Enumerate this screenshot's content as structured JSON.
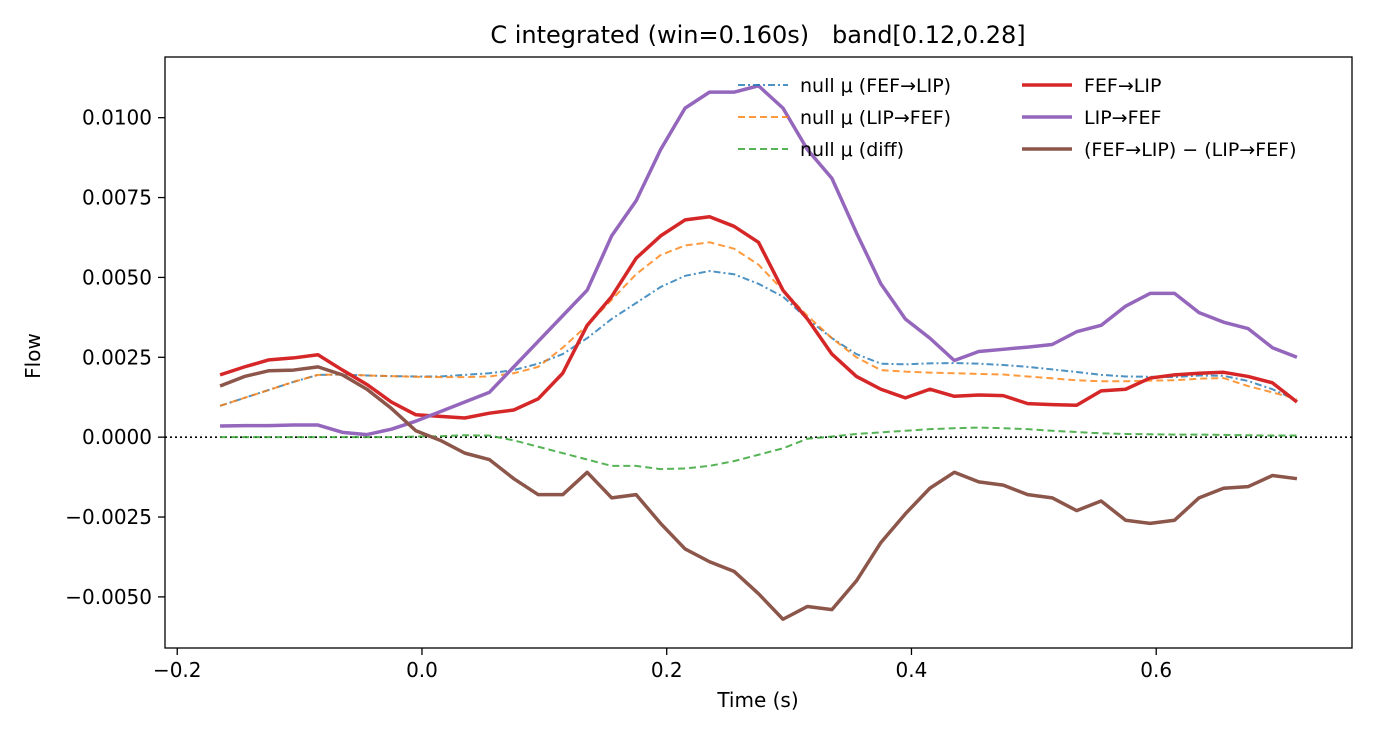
{
  "chart_data": {
    "type": "line",
    "title": "C integrated (win=0.160s)   band[0.12,0.28]",
    "xlabel": "Time (s)",
    "ylabel": "Flow",
    "xlim": [
      -0.21,
      0.76
    ],
    "ylim": [
      -0.0066,
      0.0119
    ],
    "xticks": [
      -0.2,
      0.0,
      0.2,
      0.4,
      0.6
    ],
    "xtick_labels": [
      "−0.2",
      "0.0",
      "0.2",
      "0.4",
      "0.6"
    ],
    "yticks": [
      -0.005,
      -0.0025,
      0.0,
      0.0025,
      0.005,
      0.0075,
      0.01
    ],
    "ytick_labels": [
      "−0.0050",
      "−0.0025",
      "0.0000",
      "0.0025",
      "0.0050",
      "0.0075",
      "0.0100"
    ],
    "grid": false,
    "legend_position": "top-right",
    "reference_line": {
      "y": 0.0,
      "style": "dotted",
      "color": "#000000"
    },
    "x": [
      -0.165,
      -0.145,
      -0.125,
      -0.105,
      -0.085,
      -0.065,
      -0.045,
      -0.025,
      -0.005,
      0.015,
      0.035,
      0.055,
      0.075,
      0.095,
      0.115,
      0.135,
      0.155,
      0.175,
      0.195,
      0.215,
      0.235,
      0.255,
      0.275,
      0.295,
      0.315,
      0.335,
      0.355,
      0.375,
      0.395,
      0.415,
      0.435,
      0.455,
      0.475,
      0.495,
      0.515,
      0.535,
      0.555,
      0.575,
      0.595,
      0.615,
      0.635,
      0.655,
      0.675,
      0.695,
      0.715
    ],
    "series": [
      {
        "name": "null μ (FEF→LIP)",
        "color": "#1f77b4",
        "style": "dashdot",
        "values": [
          0.00098,
          0.00123,
          0.00148,
          0.00173,
          0.00195,
          0.00196,
          0.00193,
          0.00191,
          0.0019,
          0.0019,
          0.00195,
          0.002,
          0.0021,
          0.0023,
          0.0026,
          0.0031,
          0.0037,
          0.0042,
          0.0047,
          0.00505,
          0.0052,
          0.0051,
          0.0048,
          0.0044,
          0.0037,
          0.0031,
          0.0026,
          0.0023,
          0.00228,
          0.00231,
          0.00232,
          0.0023,
          0.00226,
          0.0022,
          0.00212,
          0.00204,
          0.00195,
          0.0019,
          0.00189,
          0.00188,
          0.00193,
          0.00192,
          0.00176,
          0.0015,
          0.00115
        ]
      },
      {
        "name": "null μ (LIP→FEF)",
        "color": "#ff7f0e",
        "style": "dashed",
        "values": [
          0.00098,
          0.00123,
          0.00148,
          0.00173,
          0.00195,
          0.00196,
          0.00193,
          0.00191,
          0.00189,
          0.00188,
          0.00188,
          0.0019,
          0.002,
          0.0022,
          0.0028,
          0.0035,
          0.0043,
          0.0051,
          0.0057,
          0.006,
          0.0061,
          0.0059,
          0.0054,
          0.0046,
          0.0038,
          0.0031,
          0.0025,
          0.0021,
          0.00205,
          0.00202,
          0.002,
          0.00198,
          0.00196,
          0.0019,
          0.00184,
          0.00178,
          0.00175,
          0.00175,
          0.00177,
          0.00178,
          0.00183,
          0.00185,
          0.0016,
          0.0014,
          0.0012
        ]
      },
      {
        "name": "null μ (diff)",
        "color": "#2ca02c",
        "style": "dashed",
        "values": [
          0.0,
          0.0,
          0.0,
          0.0,
          0.0,
          0.0,
          0.0,
          0.0,
          2e-05,
          3e-05,
          6e-05,
          5e-05,
          -0.0001,
          -0.0003,
          -0.0005,
          -0.0007,
          -0.0009,
          -0.0009,
          -0.001,
          -0.00098,
          -0.0009,
          -0.00075,
          -0.00055,
          -0.00035,
          -5e-05,
          2e-05,
          0.0001,
          0.00015,
          0.0002,
          0.00025,
          0.00028,
          0.0003,
          0.00028,
          0.00025,
          0.0002,
          0.00016,
          0.00012,
          0.0001,
          9e-05,
          8e-05,
          8e-05,
          7e-05,
          6e-05,
          5e-05,
          5e-05
        ]
      },
      {
        "name": "FEF→LIP",
        "color": "#d62728",
        "style": "solid",
        "values": [
          0.00195,
          0.0022,
          0.00242,
          0.00248,
          0.00258,
          0.0021,
          0.00165,
          0.0011,
          0.0007,
          0.00065,
          0.0006,
          0.00075,
          0.00085,
          0.0012,
          0.002,
          0.0035,
          0.0044,
          0.0056,
          0.0063,
          0.0068,
          0.0069,
          0.0066,
          0.0061,
          0.0046,
          0.0037,
          0.0026,
          0.0019,
          0.0015,
          0.00123,
          0.0015,
          0.00128,
          0.00132,
          0.0013,
          0.00105,
          0.00102,
          0.001,
          0.00145,
          0.0015,
          0.00185,
          0.00195,
          0.002,
          0.00203,
          0.0019,
          0.0017,
          0.0011
        ]
      },
      {
        "name": "LIP→FEF",
        "color": "#9467bd",
        "style": "solid",
        "values": [
          0.00035,
          0.00036,
          0.00036,
          0.00038,
          0.00038,
          0.00015,
          8e-05,
          0.00025,
          0.0005,
          0.0008,
          0.0011,
          0.0014,
          0.0022,
          0.003,
          0.0038,
          0.0046,
          0.0063,
          0.0074,
          0.009,
          0.0103,
          0.0108,
          0.0108,
          0.011,
          0.0103,
          0.009,
          0.0081,
          0.0064,
          0.0048,
          0.0037,
          0.0031,
          0.0024,
          0.00268,
          0.00275,
          0.00282,
          0.0029,
          0.0033,
          0.0035,
          0.0041,
          0.0045,
          0.0045,
          0.0039,
          0.0036,
          0.0034,
          0.0028,
          0.0025
        ]
      },
      {
        "name": "(FEF→LIP) − (LIP→FEF)",
        "color": "#8c564b",
        "style": "solid",
        "values": [
          0.0016,
          0.0019,
          0.00208,
          0.0021,
          0.0022,
          0.00195,
          0.0015,
          0.0009,
          0.0002,
          -0.0001,
          -0.0005,
          -0.0007,
          -0.0013,
          -0.0018,
          -0.0018,
          -0.0011,
          -0.0019,
          -0.0018,
          -0.0027,
          -0.0035,
          -0.0039,
          -0.0042,
          -0.0049,
          -0.0057,
          -0.0053,
          -0.0054,
          -0.0045,
          -0.0033,
          -0.0024,
          -0.0016,
          -0.0011,
          -0.0014,
          -0.0015,
          -0.0018,
          -0.0019,
          -0.0023,
          -0.002,
          -0.0026,
          -0.0027,
          -0.0026,
          -0.0019,
          -0.0016,
          -0.00155,
          -0.0012,
          -0.0013
        ]
      }
    ]
  }
}
